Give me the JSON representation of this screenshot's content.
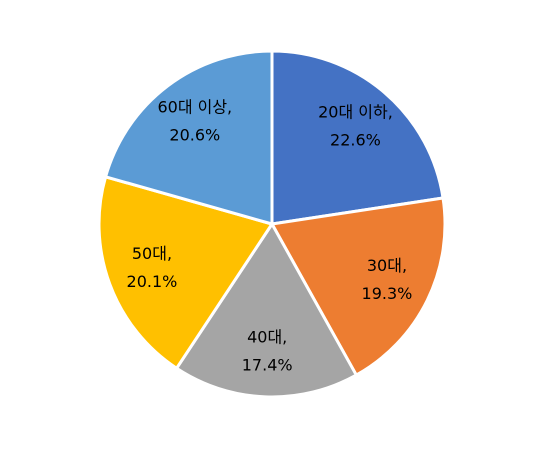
{
  "chart_data": {
    "type": "pie",
    "categories": [
      "20대 이하,",
      "30대,",
      "40대,",
      "50대,",
      "60대 이상,"
    ],
    "values": [
      22.6,
      19.3,
      17.4,
      20.1,
      20.6
    ],
    "value_labels": [
      "22.6%",
      "19.3%",
      "17.4%",
      "20.1%",
      "20.6%"
    ],
    "colors": [
      "#4472c4",
      "#ed7d31",
      "#a5a5a5",
      "#ffc000",
      "#5b9bd5"
    ]
  }
}
